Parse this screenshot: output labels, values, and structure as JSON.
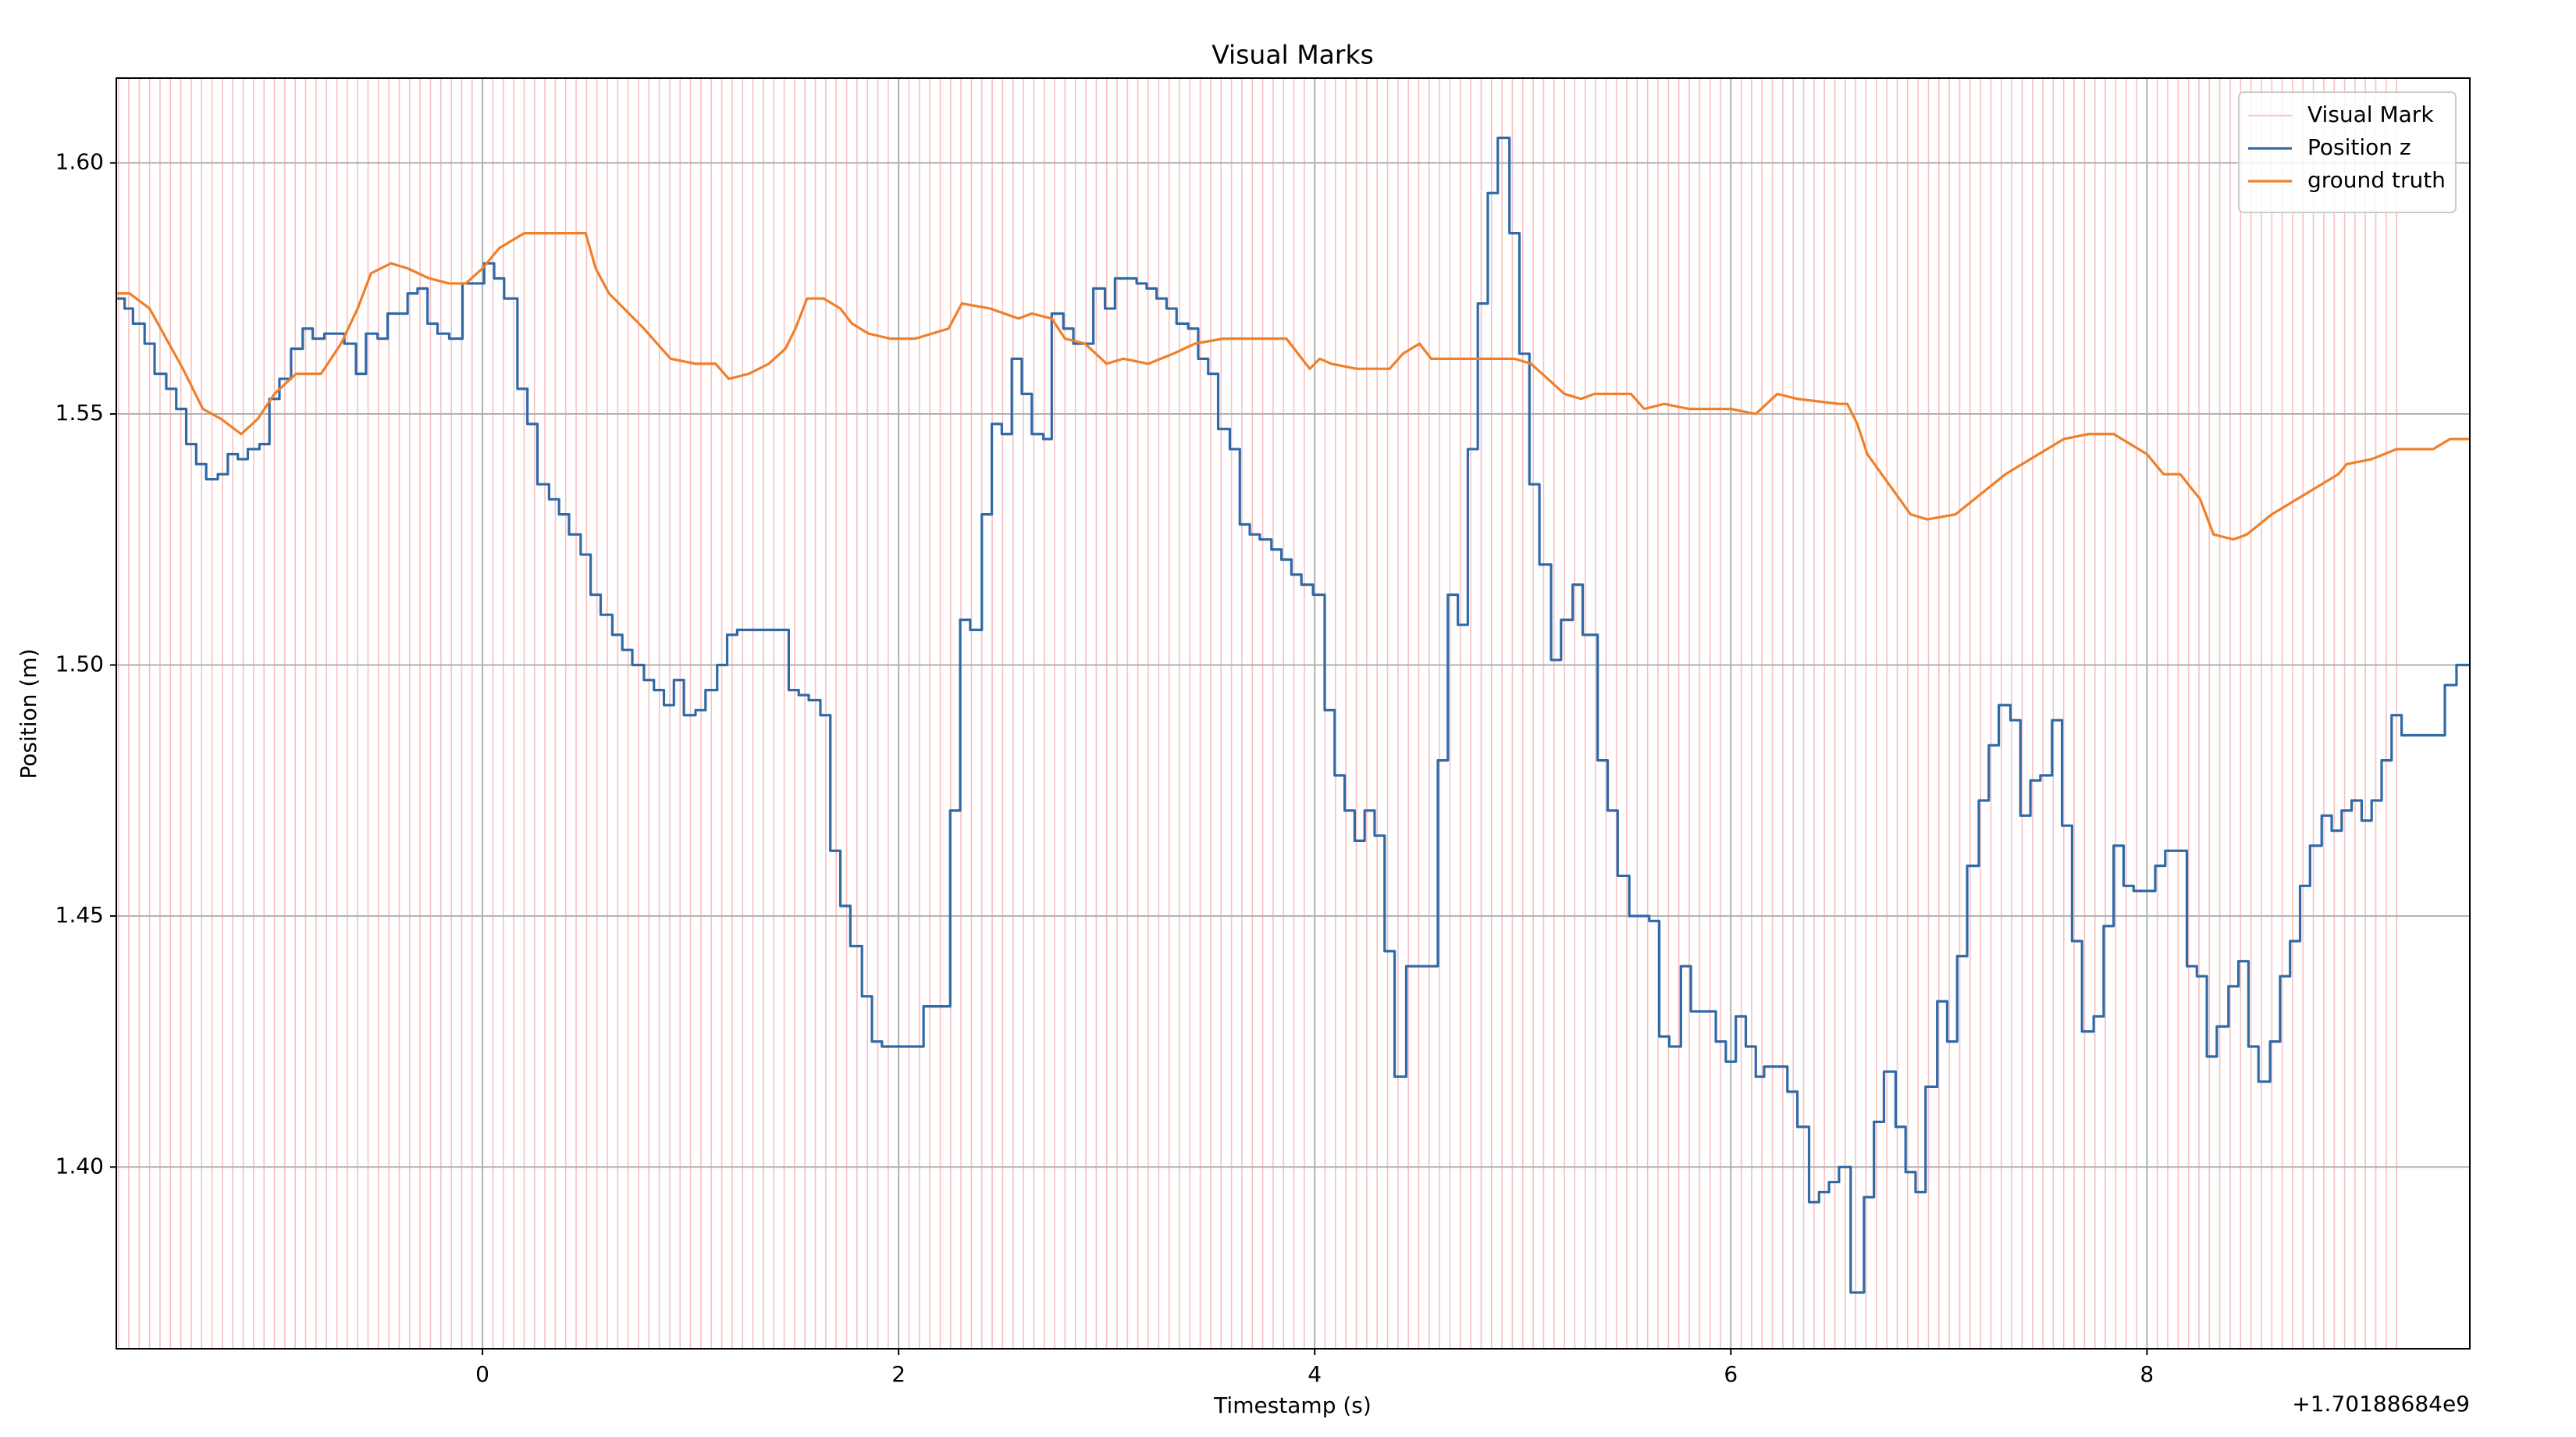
{
  "chart_data": {
    "type": "line",
    "title": "Visual Marks",
    "xlabel": "Timestamp (s)",
    "ylabel": "Position (m)",
    "x_offset_label": "+1.70188684e9",
    "xlim": [
      -1.76,
      9.552
    ],
    "ylim": [
      1.3638,
      1.6169
    ],
    "xticks": [
      0,
      2,
      4,
      6,
      8
    ],
    "yticks": [
      {
        "value": 1.4,
        "label": "1.40"
      },
      {
        "value": 1.45,
        "label": "1.45"
      },
      {
        "value": 1.5,
        "label": "1.50"
      },
      {
        "value": 1.55,
        "label": "1.55"
      },
      {
        "value": 1.6,
        "label": "1.60"
      }
    ],
    "grid": true,
    "legend": "upper right",
    "visual_marks": {
      "name": "Visual Mark",
      "color": "#f08c8c",
      "x": [
        -1.75,
        -1.7,
        -1.65,
        -1.6,
        -1.55,
        -1.5,
        -1.45,
        -1.4,
        -1.35,
        -1.3,
        -1.25,
        -1.2,
        -1.15,
        -1.1,
        -1.05,
        -1.0,
        -0.95,
        -0.9,
        -0.85,
        -0.8,
        -0.75,
        -0.7,
        -0.65,
        -0.6,
        -0.55,
        -0.5,
        -0.45,
        -0.4,
        -0.35,
        -0.3,
        -0.25,
        -0.2,
        -0.15,
        -0.1,
        -0.05,
        0,
        0.05,
        0.1,
        0.15,
        0.2,
        0.25,
        0.3,
        0.35,
        0.4,
        0.45,
        0.5,
        0.55,
        0.6,
        0.65,
        0.7,
        0.75,
        0.8,
        0.85,
        0.9,
        0.95,
        1.0,
        1.05,
        1.1,
        1.15,
        1.2,
        1.25,
        1.3,
        1.35,
        1.4,
        1.45,
        1.5,
        1.55,
        1.6,
        1.65,
        1.7,
        1.75,
        1.8,
        1.85,
        1.9,
        1.95,
        2.0,
        2.05,
        2.1,
        2.15,
        2.2,
        2.25,
        2.3,
        2.35,
        2.4,
        2.45,
        2.5,
        2.55,
        2.6,
        2.65,
        2.7,
        2.75,
        2.8,
        2.85,
        2.9,
        2.95,
        3.0,
        3.05,
        3.1,
        3.15,
        3.2,
        3.25,
        3.3,
        3.35,
        3.4,
        3.45,
        3.5,
        3.55,
        3.6,
        3.65,
        3.7,
        3.75,
        3.8,
        3.85,
        3.9,
        3.95,
        4.0,
        4.05,
        4.1,
        4.15,
        4.2,
        4.25,
        4.3,
        4.35,
        4.4,
        4.45,
        4.5,
        4.55,
        4.6,
        4.65,
        4.7,
        4.75,
        4.8,
        4.85,
        4.9,
        4.95,
        5.0,
        5.05,
        5.1,
        5.15,
        5.2,
        5.25,
        5.3,
        5.35,
        5.4,
        5.45,
        5.5,
        5.55,
        5.6,
        5.65,
        5.7,
        5.75,
        5.8,
        5.85,
        5.9,
        5.95,
        6.0,
        6.05,
        6.1,
        6.15,
        6.2,
        6.25,
        6.3,
        6.35,
        6.4,
        6.45,
        6.5,
        6.55,
        6.6,
        6.65,
        6.7,
        6.75,
        6.8,
        6.85,
        6.9,
        6.95,
        7.0,
        7.05,
        7.1,
        7.15,
        7.2,
        7.25,
        7.3,
        7.35,
        7.4,
        7.45,
        7.5,
        7.55,
        7.6,
        7.65,
        7.7,
        7.75,
        7.8,
        7.85,
        7.9,
        7.95,
        8.0,
        8.05,
        8.1,
        8.15,
        8.2,
        8.25,
        8.3,
        8.35,
        8.4,
        8.45,
        8.5,
        8.55,
        8.6,
        8.65,
        8.7,
        8.75,
        8.8,
        8.85,
        8.9,
        8.95,
        9.0,
        9.05,
        9.1,
        9.15,
        9.2
      ]
    },
    "series": [
      {
        "name": "Position z",
        "color": "#3169a6",
        "step": "post",
        "x": [
          -1.76,
          -1.72,
          -1.68,
          -1.624,
          -1.576,
          -1.52,
          -1.472,
          -1.424,
          -1.376,
          -1.328,
          -1.272,
          -1.224,
          -1.176,
          -1.128,
          -1.072,
          -1.024,
          -0.976,
          -0.92,
          -0.864,
          -0.816,
          -0.76,
          -0.712,
          -0.664,
          -0.608,
          -0.56,
          -0.504,
          -0.456,
          -0.408,
          -0.36,
          -0.312,
          -0.264,
          -0.216,
          -0.16,
          -0.096,
          -0.032,
          0.008,
          0.056,
          0.104,
          0.168,
          0.216,
          0.264,
          0.32,
          0.368,
          0.416,
          0.472,
          0.52,
          0.568,
          0.624,
          0.672,
          0.72,
          0.776,
          0.824,
          0.872,
          0.92,
          0.968,
          1.024,
          1.072,
          1.128,
          1.176,
          1.224,
          1.272,
          1.32,
          1.416,
          1.472,
          1.52,
          1.568,
          1.624,
          1.672,
          1.72,
          1.768,
          1.824,
          1.872,
          1.92,
          1.968,
          2.072,
          2.12,
          2.216,
          2.248,
          2.296,
          2.344,
          2.4,
          2.448,
          2.496,
          2.544,
          2.592,
          2.64,
          2.696,
          2.736,
          2.792,
          2.84,
          2.936,
          2.992,
          3.04,
          3.096,
          3.144,
          3.192,
          3.24,
          3.288,
          3.336,
          3.392,
          3.44,
          3.488,
          3.536,
          3.592,
          3.64,
          3.688,
          3.736,
          3.792,
          3.84,
          3.888,
          3.936,
          3.992,
          4.048,
          4.096,
          4.144,
          4.192,
          4.24,
          4.288,
          4.336,
          4.384,
          4.44,
          4.544,
          4.592,
          4.64,
          4.688,
          4.736,
          4.784,
          4.832,
          4.88,
          4.936,
          4.984,
          5.032,
          5.08,
          5.136,
          5.184,
          5.24,
          5.288,
          5.336,
          5.36,
          5.408,
          5.456,
          5.512,
          5.56,
          5.608,
          5.656,
          5.704,
          5.76,
          5.808,
          5.904,
          5.928,
          5.976,
          6.024,
          6.072,
          6.12,
          6.16,
          6.272,
          6.32,
          6.376,
          6.424,
          6.472,
          6.52,
          6.576,
          6.64,
          6.688,
          6.736,
          6.792,
          6.84,
          6.888,
          6.936,
          6.992,
          7.04,
          7.088,
          7.136,
          7.192,
          7.24,
          7.288,
          7.344,
          7.392,
          7.44,
          7.488,
          7.544,
          7.592,
          7.64,
          7.688,
          7.744,
          7.792,
          7.84,
          7.888,
          7.936,
          7.992,
          8.04,
          8.088,
          8.136,
          8.192,
          8.24,
          8.288,
          8.336,
          8.392,
          8.44,
          8.488,
          8.536,
          8.592,
          8.64,
          8.688,
          8.736,
          8.784,
          8.84,
          8.888,
          8.936,
          8.984,
          9.032,
          9.08,
          9.128,
          9.176,
          9.224,
          9.432,
          9.488,
          9.552
        ],
        "values": [
          1.573,
          1.571,
          1.568,
          1.564,
          1.558,
          1.555,
          1.551,
          1.544,
          1.54,
          1.537,
          1.538,
          1.542,
          1.541,
          1.543,
          1.544,
          1.553,
          1.557,
          1.563,
          1.567,
          1.565,
          1.566,
          1.566,
          1.564,
          1.558,
          1.566,
          1.565,
          1.57,
          1.57,
          1.574,
          1.575,
          1.568,
          1.566,
          1.565,
          1.576,
          1.576,
          1.58,
          1.577,
          1.573,
          1.555,
          1.548,
          1.536,
          1.533,
          1.53,
          1.526,
          1.522,
          1.514,
          1.51,
          1.506,
          1.503,
          1.5,
          1.497,
          1.495,
          1.492,
          1.497,
          1.49,
          1.491,
          1.495,
          1.5,
          1.506,
          1.507,
          1.507,
          1.507,
          1.507,
          1.495,
          1.494,
          1.493,
          1.49,
          1.463,
          1.452,
          1.444,
          1.434,
          1.425,
          1.424,
          1.424,
          1.424,
          1.432,
          1.432,
          1.471,
          1.509,
          1.507,
          1.53,
          1.548,
          1.546,
          1.561,
          1.554,
          1.546,
          1.545,
          1.57,
          1.567,
          1.564,
          1.575,
          1.571,
          1.577,
          1.577,
          1.576,
          1.575,
          1.573,
          1.571,
          1.568,
          1.567,
          1.561,
          1.558,
          1.547,
          1.543,
          1.528,
          1.526,
          1.525,
          1.523,
          1.521,
          1.518,
          1.516,
          1.514,
          1.491,
          1.478,
          1.471,
          1.465,
          1.471,
          1.466,
          1.443,
          1.418,
          1.44,
          1.44,
          1.481,
          1.514,
          1.508,
          1.543,
          1.572,
          1.594,
          1.605,
          1.586,
          1.562,
          1.536,
          1.52,
          1.501,
          1.509,
          1.516,
          1.506,
          1.506,
          1.481,
          1.471,
          1.458,
          1.45,
          1.45,
          1.449,
          1.426,
          1.424,
          1.44,
          1.431,
          1.431,
          1.425,
          1.421,
          1.43,
          1.424,
          1.418,
          1.42,
          1.415,
          1.408,
          1.393,
          1.395,
          1.397,
          1.4,
          1.375,
          1.394,
          1.409,
          1.419,
          1.408,
          1.399,
          1.395,
          1.416,
          1.433,
          1.425,
          1.442,
          1.46,
          1.473,
          1.484,
          1.492,
          1.489,
          1.47,
          1.477,
          1.478,
          1.489,
          1.468,
          1.445,
          1.427,
          1.43,
          1.448,
          1.464,
          1.456,
          1.455,
          1.455,
          1.46,
          1.463,
          1.463,
          1.44,
          1.438,
          1.422,
          1.428,
          1.436,
          1.441,
          1.424,
          1.417,
          1.425,
          1.438,
          1.445,
          1.456,
          1.464,
          1.47,
          1.467,
          1.471,
          1.473,
          1.469,
          1.473,
          1.481,
          1.49,
          1.486,
          1.496,
          1.5,
          1.5
        ]
      },
      {
        "name": "ground truth",
        "color": "#f07f2a",
        "x": [
          -1.76,
          -1.696,
          -1.6,
          -1.52,
          -1.44,
          -1.344,
          -1.256,
          -1.16,
          -1.08,
          -1.0,
          -0.896,
          -0.776,
          -0.68,
          -0.6,
          -0.536,
          -0.44,
          -0.36,
          -0.256,
          -0.16,
          -0.08,
          0,
          0.08,
          0.2,
          0.32,
          0.4,
          0.496,
          0.544,
          0.608,
          0.68,
          0.776,
          0.904,
          1.024,
          1.12,
          1.184,
          1.28,
          1.376,
          1.456,
          1.504,
          1.56,
          1.64,
          1.72,
          1.776,
          1.856,
          1.96,
          2.08,
          2.24,
          2.304,
          2.44,
          2.576,
          2.64,
          2.736,
          2.8,
          2.896,
          3.0,
          3.08,
          3.2,
          3.32,
          3.424,
          3.56,
          3.72,
          3.864,
          3.92,
          3.976,
          4.024,
          4.08,
          4.2,
          4.36,
          4.424,
          4.504,
          4.56,
          4.72,
          4.96,
          5.04,
          5.12,
          5.2,
          5.28,
          5.344,
          5.52,
          5.584,
          5.68,
          5.8,
          6.0,
          6.12,
          6.224,
          6.32,
          6.52,
          6.56,
          6.608,
          6.656,
          6.76,
          6.864,
          6.944,
          7.08,
          7.2,
          7.32,
          7.44,
          7.6,
          7.72,
          7.84,
          8.0,
          8.08,
          8.16,
          8.256,
          8.32,
          8.416,
          8.48,
          8.6,
          8.72,
          8.84,
          8.92,
          8.96,
          9.08,
          9.2,
          9.376,
          9.456,
          9.552
        ],
        "values": [
          1.574,
          1.574,
          1.571,
          1.565,
          1.559,
          1.551,
          1.549,
          1.546,
          1.549,
          1.554,
          1.558,
          1.558,
          1.564,
          1.571,
          1.578,
          1.58,
          1.579,
          1.577,
          1.576,
          1.576,
          1.579,
          1.583,
          1.586,
          1.586,
          1.586,
          1.586,
          1.579,
          1.574,
          1.571,
          1.567,
          1.561,
          1.56,
          1.56,
          1.557,
          1.558,
          1.56,
          1.563,
          1.567,
          1.573,
          1.573,
          1.571,
          1.568,
          1.566,
          1.565,
          1.565,
          1.567,
          1.572,
          1.571,
          1.569,
          1.57,
          1.569,
          1.565,
          1.564,
          1.56,
          1.561,
          1.56,
          1.562,
          1.564,
          1.565,
          1.565,
          1.565,
          1.562,
          1.559,
          1.561,
          1.56,
          1.559,
          1.559,
          1.562,
          1.564,
          1.561,
          1.561,
          1.561,
          1.56,
          1.557,
          1.554,
          1.553,
          1.554,
          1.554,
          1.551,
          1.552,
          1.551,
          1.551,
          1.55,
          1.554,
          1.553,
          1.552,
          1.552,
          1.548,
          1.542,
          1.536,
          1.53,
          1.529,
          1.53,
          1.534,
          1.538,
          1.541,
          1.545,
          1.546,
          1.546,
          1.542,
          1.538,
          1.538,
          1.533,
          1.526,
          1.525,
          1.526,
          1.53,
          1.533,
          1.536,
          1.538,
          1.54,
          1.541,
          1.543,
          1.543,
          1.545,
          1.545
        ]
      }
    ]
  }
}
